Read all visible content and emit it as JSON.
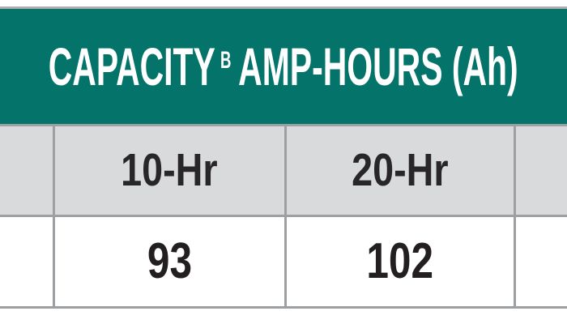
{
  "header": {
    "title_main": "CAPACITY",
    "title_superscript": "B",
    "title_rest": "AMP-HOURS (Ah)",
    "background_color": "#04736A",
    "text_color": "#FFFFFF"
  },
  "table": {
    "columns": [
      {
        "label": "10-Hr",
        "value": "93"
      },
      {
        "label": "20-Hr",
        "value": "102"
      }
    ],
    "label_row_background": "#D8DADB",
    "value_row_background": "#FFFFFF",
    "border_color": "#9DA0A2",
    "text_color": "#231F20"
  }
}
